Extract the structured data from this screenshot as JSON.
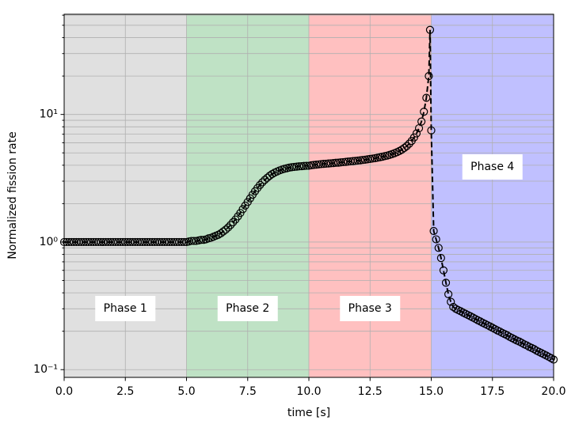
{
  "chart_data": {
    "type": "line",
    "xlabel": "time [s]",
    "ylabel": "Normalized fission rate",
    "ylog": true,
    "grid": true,
    "color": "#000000",
    "dashed": true,
    "marker": "open-circle",
    "xlim": [
      0,
      20
    ],
    "ylim": [
      0.087,
      61
    ],
    "xticks": [
      {
        "value": 0,
        "label": "0.0"
      },
      2.5,
      {
        "value": 5,
        "label": "5.0"
      },
      7.5,
      {
        "value": 10,
        "label": "10.0"
      },
      12.5,
      {
        "value": 15,
        "label": "15.0"
      },
      17.5,
      {
        "value": 20,
        "label": "20.0"
      }
    ],
    "yticks": [
      {
        "value": 0.1,
        "label": "10⁻¹"
      },
      {
        "value": 1,
        "label": "10⁰"
      },
      {
        "value": 10,
        "label": "10¹"
      }
    ],
    "yminorticks": [
      0.2,
      0.3,
      0.4,
      0.5,
      0.6,
      0.7,
      0.8,
      0.9,
      2,
      3,
      4,
      5,
      6,
      7,
      8,
      9,
      20,
      30,
      40,
      50,
      60
    ],
    "regions": [
      {
        "label": "Phase 1",
        "start": 0,
        "end": 5,
        "color": "#e0e0e0"
      },
      {
        "label": "Phase 2",
        "start": 5,
        "end": 10,
        "color": "#bfe2c5"
      },
      {
        "label": "Phase 3",
        "start": 10,
        "end": 15,
        "color": "#ffc0c0"
      },
      {
        "label": "Phase 4",
        "start": 15,
        "end": 20,
        "color": "#c0c0ff"
      }
    ],
    "x": [
      0,
      0.1,
      0.2,
      0.3,
      0.4,
      0.5,
      0.6,
      0.7,
      0.8,
      0.9,
      1,
      1.1,
      1.2,
      1.3,
      1.4,
      1.5,
      1.6,
      1.7,
      1.8,
      1.9,
      2,
      2.1,
      2.2,
      2.3,
      2.4,
      2.5,
      2.6,
      2.7,
      2.8,
      2.9,
      3,
      3.1,
      3.2,
      3.3,
      3.4,
      3.5,
      3.6,
      3.7,
      3.8,
      3.9,
      4,
      4.1,
      4.2,
      4.3,
      4.4,
      4.5,
      4.6,
      4.7,
      4.8,
      4.9,
      5,
      5.1,
      5.2,
      5.3,
      5.4,
      5.5,
      5.6,
      5.7,
      5.8,
      5.9,
      6,
      6.1,
      6.2,
      6.3,
      6.4,
      6.5,
      6.6,
      6.7,
      6.8,
      6.9,
      7,
      7.1,
      7.2,
      7.3,
      7.4,
      7.5,
      7.6,
      7.7,
      7.8,
      7.9,
      8,
      8.1,
      8.2,
      8.3,
      8.4,
      8.5,
      8.6,
      8.7,
      8.8,
      8.9,
      9,
      9.1,
      9.2,
      9.3,
      9.4,
      9.5,
      9.6,
      9.7,
      9.8,
      9.9,
      10,
      10.1,
      10.2,
      10.3,
      10.4,
      10.5,
      10.6,
      10.7,
      10.8,
      10.9,
      11,
      11.1,
      11.2,
      11.3,
      11.4,
      11.5,
      11.6,
      11.7,
      11.8,
      11.9,
      12,
      12.1,
      12.2,
      12.3,
      12.4,
      12.5,
      12.6,
      12.7,
      12.8,
      12.9,
      13,
      13.1,
      13.2,
      13.3,
      13.4,
      13.5,
      13.6,
      13.7,
      13.8,
      13.9,
      14,
      14.1,
      14.2,
      14.3,
      14.4,
      14.5,
      14.6,
      14.7,
      14.8,
      14.9,
      14.95,
      15,
      15.1,
      15.2,
      15.3,
      15.4,
      15.5,
      15.6,
      15.7,
      15.8,
      15.9,
      16,
      16.1,
      16.2,
      16.3,
      16.4,
      16.5,
      16.6,
      16.7,
      16.8,
      16.9,
      17,
      17.1,
      17.2,
      17.3,
      17.4,
      17.5,
      17.6,
      17.7,
      17.8,
      17.9,
      18,
      18.1,
      18.2,
      18.3,
      18.4,
      18.5,
      18.6,
      18.7,
      18.8,
      18.9,
      19,
      19.1,
      19.2,
      19.3,
      19.4,
      19.5,
      19.6,
      19.7,
      19.8,
      19.9,
      20
    ],
    "values": [
      1,
      1,
      1,
      1,
      1,
      1,
      1,
      1,
      1,
      1,
      1,
      1,
      1,
      1,
      1,
      1,
      1,
      1,
      1,
      1,
      1,
      1,
      1,
      1,
      1,
      1,
      1,
      1,
      1,
      1,
      1,
      1,
      1,
      1,
      1,
      1,
      1,
      1,
      1,
      1,
      1,
      1,
      1,
      1,
      1,
      1,
      1,
      1,
      1,
      1,
      1,
      1.01,
      1.02,
      1.02,
      1.02,
      1.03,
      1.04,
      1.04,
      1.05,
      1.07,
      1.08,
      1.1,
      1.12,
      1.14,
      1.17,
      1.21,
      1.25,
      1.3,
      1.36,
      1.43,
      1.5,
      1.59,
      1.69,
      1.81,
      1.93,
      2.06,
      2.2,
      2.35,
      2.5,
      2.65,
      2.8,
      2.94,
      3.07,
      3.19,
      3.31,
      3.41,
      3.5,
      3.57,
      3.64,
      3.7,
      3.75,
      3.79,
      3.83,
      3.86,
      3.88,
      3.9,
      3.92,
      3.93,
      3.95,
      3.96,
      3.96,
      4,
      4.02,
      4.04,
      4.06,
      4.08,
      4.1,
      4.11,
      4.13,
      4.14,
      4.16,
      4.18,
      4.19,
      4.21,
      4.23,
      4.25,
      4.27,
      4.29,
      4.31,
      4.33,
      4.35,
      4.37,
      4.4,
      4.42,
      4.45,
      4.48,
      4.51,
      4.54,
      4.58,
      4.62,
      4.66,
      4.71,
      4.76,
      4.82,
      4.89,
      4.97,
      5.06,
      5.17,
      5.3,
      5.46,
      5.65,
      5.9,
      6.2,
      6.6,
      7.1,
      7.8,
      8.8,
      10.5,
      13.5,
      20,
      46,
      7.5,
      1.22,
      1.05,
      0.9,
      0.75,
      0.6,
      0.48,
      0.39,
      0.34,
      0.31,
      0.3,
      0.293,
      0.287,
      0.28,
      0.274,
      0.268,
      0.262,
      0.256,
      0.25,
      0.244,
      0.239,
      0.233,
      0.228,
      0.223,
      0.218,
      0.213,
      0.208,
      0.203,
      0.199,
      0.194,
      0.19,
      0.186,
      0.181,
      0.177,
      0.173,
      0.169,
      0.166,
      0.162,
      0.158,
      0.155,
      0.151,
      0.148,
      0.145,
      0.141,
      0.138,
      0.135,
      0.132,
      0.129,
      0.126,
      0.123,
      0.12
    ]
  }
}
